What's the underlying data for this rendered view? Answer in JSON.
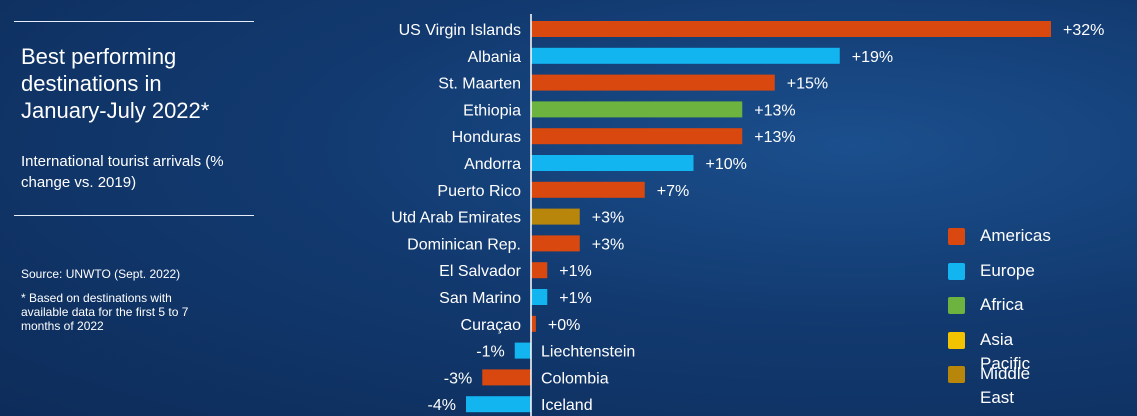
{
  "sidebar": {
    "title": "Best performing destinations in January-July 2022*",
    "subtitle": "International tourist arrivals (% change vs. 2019)",
    "source": "Source: UNWTO (Sept. 2022)",
    "footnote": "*  Based on destinations with available data for the first 5 to 7 months of 2022"
  },
  "chart_data": {
    "type": "bar",
    "orientation": "horizontal",
    "title": "Best performing destinations in January-July 2022*",
    "subtitle": "International tourist arrivals (% change vs. 2019)",
    "unit": "%",
    "xlim": [
      -4,
      32
    ],
    "categories": [
      "US Virgin Islands",
      "Albania",
      "St. Maarten",
      "Ethiopia",
      "Honduras",
      "Andorra",
      "Puerto Rico",
      "Utd Arab Emirates",
      "Dominican Rep.",
      "El Salvador",
      "San Marino",
      "Curaçao",
      "Liechtenstein",
      "Colombia",
      "Iceland"
    ],
    "values": [
      32,
      19,
      15,
      13,
      13,
      10,
      7,
      3,
      3,
      1,
      1,
      0.3,
      -1,
      -3,
      -4
    ],
    "value_labels": [
      "+32%",
      "+19%",
      "+15%",
      "+13%",
      "+13%",
      "+10%",
      "+7%",
      "+3%",
      "+3%",
      "+1%",
      "+1%",
      "+0%",
      "-1%",
      "-3%",
      "-4%"
    ],
    "regions": [
      "Americas",
      "Europe",
      "Americas",
      "Africa",
      "Americas",
      "Europe",
      "Americas",
      "Middle East",
      "Americas",
      "Americas",
      "Europe",
      "Americas",
      "Europe",
      "Americas",
      "Europe"
    ],
    "legend": [
      {
        "name": "Americas",
        "color": "#d9480f"
      },
      {
        "name": "Europe",
        "color": "#12b5f0"
      },
      {
        "name": "Africa",
        "color": "#6cb33f"
      },
      {
        "name": "Asia Pacific",
        "color": "#f2c300"
      },
      {
        "name": "Middle East",
        "color": "#b8860b"
      }
    ],
    "legend_position": "bottom-right"
  }
}
